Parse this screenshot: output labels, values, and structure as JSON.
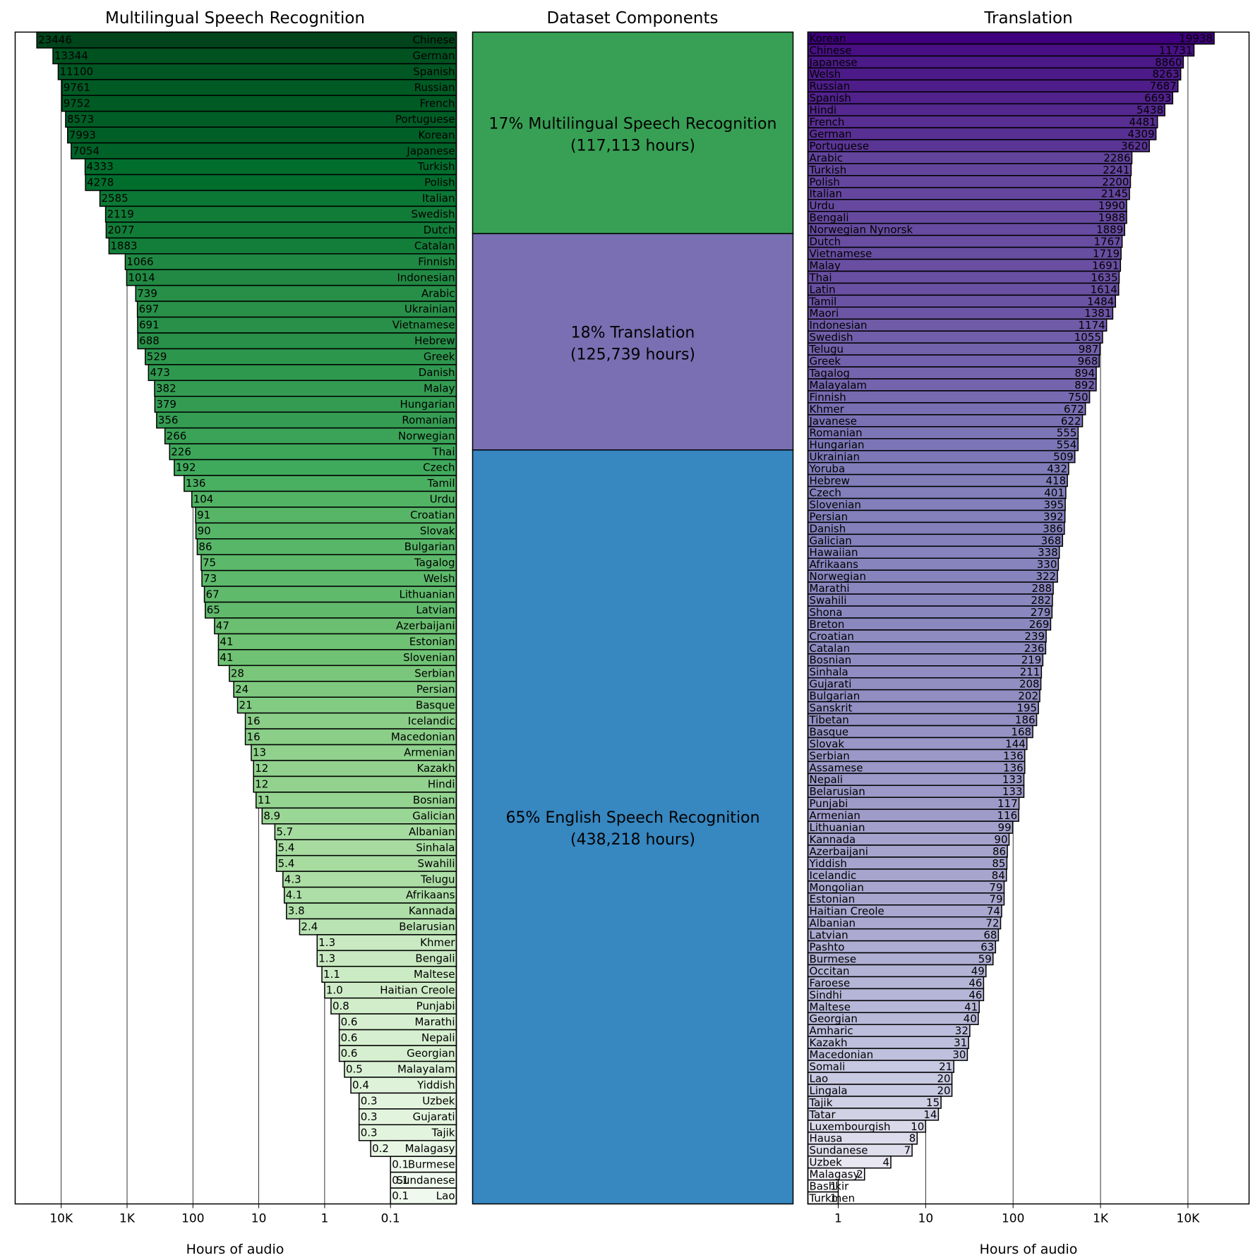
{
  "chart_data": [
    {
      "type": "bar",
      "orientation": "horizontal",
      "title": "Multilingual Speech Recognition",
      "xlabel": "Hours of audio",
      "xscale": "log",
      "xaxis_inverted": true,
      "xlim": [
        0.01,
        50000
      ],
      "xticks": [
        10000,
        1000,
        100,
        10,
        1,
        0.1
      ],
      "xtick_labels": [
        "10K",
        "1K",
        "100",
        "10",
        "1",
        "0.1"
      ],
      "grid": "vertical lines at ticks",
      "colormap": "Greens",
      "categories": [
        "Chinese",
        "German",
        "Spanish",
        "Russian",
        "French",
        "Portuguese",
        "Korean",
        "Japanese",
        "Turkish",
        "Polish",
        "Italian",
        "Swedish",
        "Dutch",
        "Catalan",
        "Finnish",
        "Indonesian",
        "Arabic",
        "Ukrainian",
        "Vietnamese",
        "Hebrew",
        "Greek",
        "Danish",
        "Malay",
        "Hungarian",
        "Romanian",
        "Norwegian",
        "Thai",
        "Czech",
        "Tamil",
        "Urdu",
        "Croatian",
        "Slovak",
        "Bulgarian",
        "Tagalog",
        "Welsh",
        "Lithuanian",
        "Latvian",
        "Azerbaijani",
        "Estonian",
        "Slovenian",
        "Serbian",
        "Persian",
        "Basque",
        "Icelandic",
        "Macedonian",
        "Armenian",
        "Kazakh",
        "Hindi",
        "Bosnian",
        "Galician",
        "Albanian",
        "Sinhala",
        "Swahili",
        "Telugu",
        "Afrikaans",
        "Kannada",
        "Belarusian",
        "Khmer",
        "Bengali",
        "Maltese",
        "Haitian Creole",
        "Punjabi",
        "Marathi",
        "Nepali",
        "Georgian",
        "Malayalam",
        "Yiddish",
        "Uzbek",
        "Gujarati",
        "Tajik",
        "Malagasy",
        "Burmese",
        "Sundanese",
        "Lao"
      ],
      "values": [
        23446,
        13344,
        11100,
        9761,
        9752,
        8573,
        7993,
        7054,
        4333,
        4278,
        2585,
        2119,
        2077,
        1883,
        1066,
        1014,
        739,
        697,
        691,
        688,
        529,
        473,
        382,
        379,
        356,
        266,
        226,
        192,
        136,
        104,
        91,
        90,
        86,
        75,
        73,
        67,
        65,
        47,
        41,
        41,
        28,
        24,
        21,
        16,
        16,
        13,
        12,
        12,
        11,
        8.9,
        5.7,
        5.4,
        5.4,
        4.3,
        4.1,
        3.8,
        2.4,
        1.3,
        1.3,
        1.1,
        1.0,
        0.8,
        0.6,
        0.6,
        0.6,
        0.5,
        0.4,
        0.3,
        0.3,
        0.3,
        0.2,
        0.1,
        0.1,
        0.1
      ],
      "value_labels": [
        "23446",
        "13344",
        "11100",
        "9761",
        "9752",
        "8573",
        "7993",
        "7054",
        "4333",
        "4278",
        "2585",
        "2119",
        "2077",
        "1883",
        "1066",
        "1014",
        "739",
        "697",
        "691",
        "688",
        "529",
        "473",
        "382",
        "379",
        "356",
        "266",
        "226",
        "192",
        "136",
        "104",
        "91",
        "90",
        "86",
        "75",
        "73",
        "67",
        "65",
        "47",
        "41",
        "41",
        "28",
        "24",
        "21",
        "16",
        "16",
        "13",
        "12",
        "12",
        "11",
        "8.9",
        "5.7",
        "5.4",
        "5.4",
        "4.3",
        "4.1",
        "3.8",
        "2.4",
        "1.3",
        "1.3",
        "1.1",
        "1.0",
        "0.8",
        "0.6",
        "0.6",
        "0.6",
        "0.5",
        "0.4",
        "0.3",
        "0.3",
        "0.3",
        "0.2",
        "0.1",
        "0.1",
        "0.1"
      ]
    },
    {
      "type": "stacked-bar",
      "title": "Dataset Components",
      "segments": [
        {
          "label": "17% Multilingual Speech Recognition",
          "sublabel": "(117,113 hours)",
          "hours": 117113,
          "percent": 17,
          "color": "#38a055"
        },
        {
          "label": "18% Translation",
          "sublabel": "(125,739 hours)",
          "hours": 125739,
          "percent": 18,
          "color": "#7a6fb2"
        },
        {
          "label": "65% English Speech Recognition",
          "sublabel": "(438,218 hours)",
          "hours": 438218,
          "percent": 65,
          "color": "#3787c0"
        }
      ]
    },
    {
      "type": "bar",
      "orientation": "horizontal",
      "title": "Translation",
      "xlabel": "Hours of audio",
      "xscale": "log",
      "xlim": [
        0.45,
        50000
      ],
      "xticks": [
        1,
        10,
        100,
        1000,
        10000
      ],
      "xtick_labels": [
        "1",
        "10",
        "100",
        "1K",
        "10K"
      ],
      "grid": "vertical lines at ticks",
      "colormap": "Purples",
      "categories": [
        "Korean",
        "Chinese",
        "Japanese",
        "Welsh",
        "Russian",
        "Spanish",
        "Hindi",
        "French",
        "German",
        "Portuguese",
        "Arabic",
        "Turkish",
        "Polish",
        "Italian",
        "Urdu",
        "Bengali",
        "Norwegian Nynorsk",
        "Dutch",
        "Vietnamese",
        "Malay",
        "Thai",
        "Latin",
        "Tamil",
        "Maori",
        "Indonesian",
        "Swedish",
        "Telugu",
        "Greek",
        "Tagalog",
        "Malayalam",
        "Finnish",
        "Khmer",
        "Javanese",
        "Romanian",
        "Hungarian",
        "Ukrainian",
        "Yoruba",
        "Hebrew",
        "Czech",
        "Slovenian",
        "Persian",
        "Danish",
        "Galician",
        "Hawaiian",
        "Afrikaans",
        "Norwegian",
        "Marathi",
        "Swahili",
        "Shona",
        "Breton",
        "Croatian",
        "Catalan",
        "Bosnian",
        "Sinhala",
        "Gujarati",
        "Bulgarian",
        "Sanskrit",
        "Tibetan",
        "Basque",
        "Slovak",
        "Serbian",
        "Assamese",
        "Nepali",
        "Belarusian",
        "Punjabi",
        "Armenian",
        "Lithuanian",
        "Kannada",
        "Azerbaijani",
        "Yiddish",
        "Icelandic",
        "Mongolian",
        "Estonian",
        "Haitian Creole",
        "Albanian",
        "Latvian",
        "Pashto",
        "Burmese",
        "Occitan",
        "Faroese",
        "Sindhi",
        "Maltese",
        "Georgian",
        "Amharic",
        "Kazakh",
        "Macedonian",
        "Somali",
        "Lao",
        "Lingala",
        "Tajik",
        "Tatar",
        "Luxembourgish",
        "Hausa",
        "Sundanese",
        "Uzbek",
        "Malagasy",
        "Bashkir",
        "Turkmen"
      ],
      "values": [
        19938,
        11731,
        8860,
        8263,
        7687,
        6693,
        5438,
        4481,
        4309,
        3620,
        2286,
        2241,
        2200,
        2145,
        1990,
        1988,
        1889,
        1767,
        1719,
        1691,
        1635,
        1614,
        1484,
        1381,
        1174,
        1055,
        987,
        968,
        894,
        892,
        750,
        672,
        622,
        555,
        554,
        509,
        432,
        418,
        401,
        395,
        392,
        386,
        368,
        338,
        330,
        322,
        288,
        282,
        279,
        269,
        239,
        236,
        219,
        211,
        208,
        202,
        195,
        186,
        168,
        144,
        136,
        136,
        133,
        133,
        117,
        116,
        99,
        90,
        86,
        85,
        84,
        79,
        79,
        74,
        72,
        68,
        63,
        59,
        49,
        46,
        46,
        41,
        40,
        32,
        31,
        30,
        21,
        20,
        20,
        15,
        14,
        10,
        8,
        7,
        4,
        2,
        1,
        1
      ],
      "value_labels": [
        "19938",
        "11731",
        "8860",
        "8263",
        "7687",
        "6693",
        "5438",
        "4481",
        "4309",
        "3620",
        "2286",
        "2241",
        "2200",
        "2145",
        "1990",
        "1988",
        "1889",
        "1767",
        "1719",
        "1691",
        "1635",
        "1614",
        "1484",
        "1381",
        "1174",
        "1055",
        "987",
        "968",
        "894",
        "892",
        "750",
        "672",
        "622",
        "555",
        "554",
        "509",
        "432",
        "418",
        "401",
        "395",
        "392",
        "386",
        "368",
        "338",
        "330",
        "322",
        "288",
        "282",
        "279",
        "269",
        "239",
        "236",
        "219",
        "211",
        "208",
        "202",
        "195",
        "186",
        "168",
        "144",
        "136",
        "136",
        "133",
        "133",
        "117",
        "116",
        "99",
        "90",
        "86",
        "85",
        "84",
        "79",
        "79",
        "74",
        "72",
        "68",
        "63",
        "59",
        "49",
        "46",
        "46",
        "41",
        "40",
        "32",
        "31",
        "30",
        "21",
        "20",
        "20",
        "15",
        "14",
        "10",
        "8",
        "7",
        "4",
        "2",
        "1",
        "1"
      ]
    }
  ]
}
